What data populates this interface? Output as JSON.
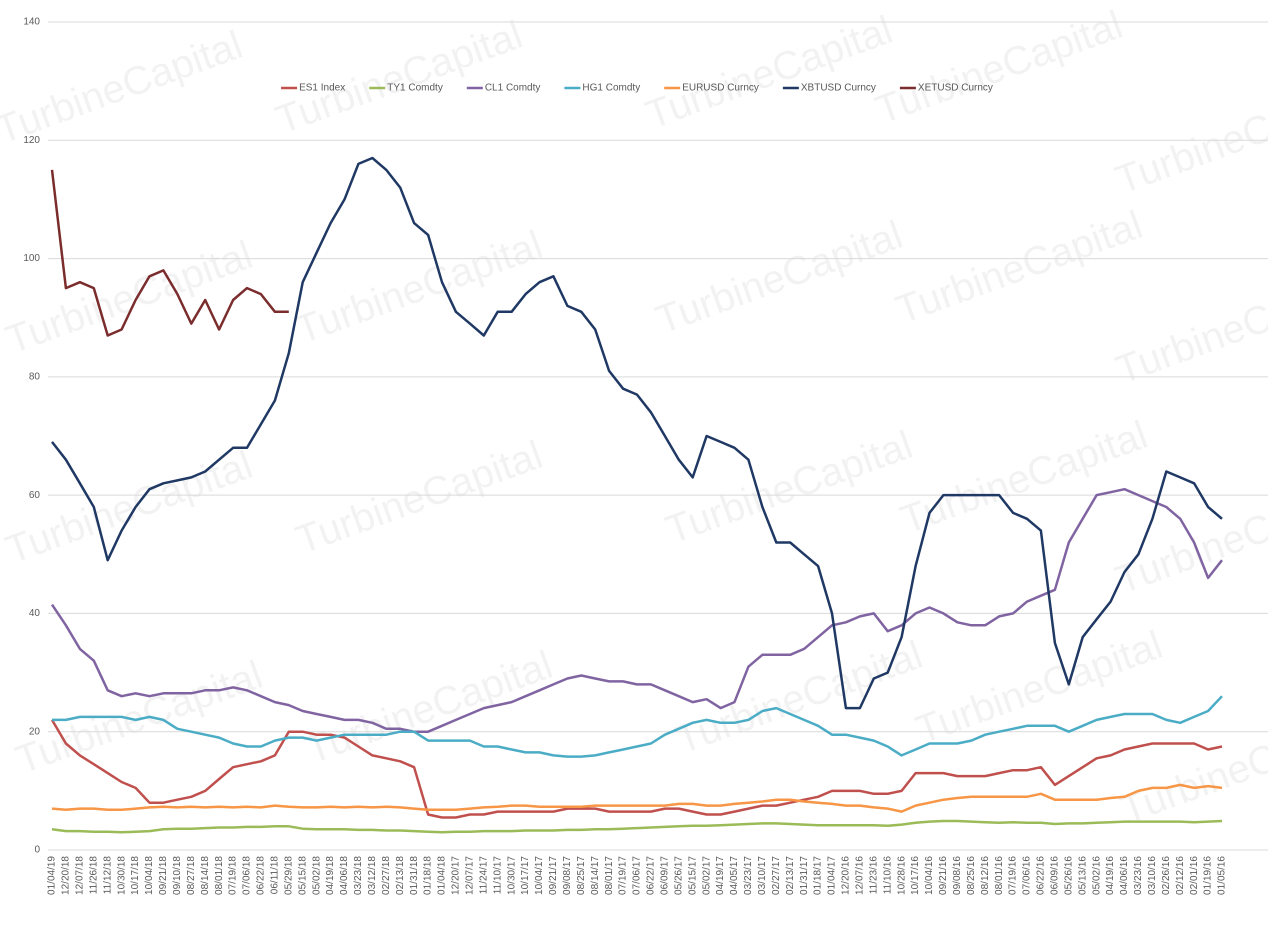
{
  "watermark": "TurbineCapital",
  "chart_data": {
    "type": "line",
    "categories": [
      "01/04/19",
      "12/20/18",
      "12/07/18",
      "11/26/18",
      "11/12/18",
      "10/30/18",
      "10/17/18",
      "10/04/18",
      "09/21/18",
      "09/10/18",
      "08/27/18",
      "08/14/18",
      "08/01/18",
      "07/19/18",
      "07/06/18",
      "06/22/18",
      "06/11/18",
      "05/29/18",
      "05/15/18",
      "05/02/18",
      "04/19/18",
      "04/06/18",
      "03/23/18",
      "03/12/18",
      "02/27/18",
      "02/13/18",
      "01/31/18",
      "01/18/18",
      "01/04/18",
      "12/20/17",
      "12/07/17",
      "11/24/17",
      "11/10/17",
      "10/30/17",
      "10/17/17",
      "10/04/17",
      "09/21/17",
      "09/08/17",
      "08/25/17",
      "08/14/17",
      "08/01/17",
      "07/19/17",
      "07/06/17",
      "06/22/17",
      "06/09/17",
      "05/26/17",
      "05/15/17",
      "05/02/17",
      "04/19/17",
      "04/05/17",
      "03/23/17",
      "03/10/17",
      "02/27/17",
      "02/13/17",
      "01/31/17",
      "01/18/17",
      "01/04/17",
      "12/20/16",
      "12/07/16",
      "11/23/16",
      "11/10/16",
      "10/28/16",
      "10/17/16",
      "10/04/16",
      "09/21/16",
      "09/08/16",
      "08/25/16",
      "08/12/16",
      "08/01/16",
      "07/19/16",
      "07/06/16",
      "06/22/16",
      "06/09/16",
      "05/26/16",
      "05/13/16",
      "05/02/16",
      "04/19/16",
      "04/06/16",
      "03/23/16",
      "03/10/16",
      "02/26/16",
      "02/12/16",
      "02/01/16",
      "01/19/16",
      "01/05/16"
    ],
    "ylim": [
      0,
      140
    ],
    "yticks": [
      0,
      20,
      40,
      60,
      80,
      100,
      120,
      140
    ],
    "grid": true,
    "legend": "top",
    "series": [
      {
        "name": "ES1 Index",
        "color": "#c0504d",
        "values": [
          22,
          18,
          16,
          14.5,
          13,
          11.5,
          10.5,
          8,
          8,
          8.5,
          9,
          10,
          12,
          14,
          14.5,
          15,
          16,
          20,
          20,
          19.5,
          19.5,
          19,
          17.5,
          16,
          15.5,
          15,
          14,
          6,
          5.5,
          5.5,
          6,
          6,
          6.5,
          6.5,
          6.5,
          6.5,
          6.5,
          7,
          7,
          7,
          6.5,
          6.5,
          6.5,
          6.5,
          7,
          7,
          6.5,
          6,
          6,
          6.5,
          7,
          7.5,
          7.5,
          8,
          8.5,
          9,
          10,
          10,
          10,
          9.5,
          9.5,
          10,
          13,
          13,
          13,
          12.5,
          12.5,
          12.5,
          13,
          13.5,
          13.5,
          14,
          11,
          12.5,
          14,
          15.5,
          16,
          17,
          17.5,
          18,
          18,
          18,
          18,
          17,
          17.5
        ]
      },
      {
        "name": "TY1 Comdty",
        "color": "#9bbb59",
        "values": [
          3.5,
          3.2,
          3.2,
          3.1,
          3.1,
          3,
          3.1,
          3.2,
          3.5,
          3.6,
          3.6,
          3.7,
          3.8,
          3.8,
          3.9,
          3.9,
          4,
          4,
          3.6,
          3.5,
          3.5,
          3.5,
          3.4,
          3.4,
          3.3,
          3.3,
          3.2,
          3.1,
          3,
          3.1,
          3.1,
          3.2,
          3.2,
          3.2,
          3.3,
          3.3,
          3.3,
          3.4,
          3.4,
          3.5,
          3.5,
          3.6,
          3.7,
          3.8,
          3.9,
          4,
          4.1,
          4.1,
          4.2,
          4.3,
          4.4,
          4.5,
          4.5,
          4.4,
          4.3,
          4.2,
          4.2,
          4.2,
          4.2,
          4.2,
          4.1,
          4.3,
          4.6,
          4.8,
          4.9,
          4.9,
          4.8,
          4.7,
          4.6,
          4.7,
          4.6,
          4.6,
          4.4,
          4.5,
          4.5,
          4.6,
          4.7,
          4.8,
          4.8,
          4.8,
          4.8,
          4.8,
          4.7,
          4.8,
          4.9
        ]
      },
      {
        "name": "CL1 Comdty",
        "color": "#8064a2",
        "values": [
          41.5,
          38,
          34,
          32,
          27,
          26,
          26.5,
          26,
          26.5,
          26.5,
          26.5,
          27,
          27,
          27.5,
          27,
          26,
          25,
          24.5,
          23.5,
          23,
          22.5,
          22,
          22,
          21.5,
          20.5,
          20.5,
          20,
          20,
          21,
          22,
          23,
          24,
          24.5,
          25,
          26,
          27,
          28,
          29,
          29.5,
          29,
          28.5,
          28.5,
          28,
          28,
          27,
          26,
          25,
          25.5,
          24,
          25,
          31,
          33,
          33,
          33,
          34,
          36,
          38,
          38.5,
          39.5,
          40,
          37,
          38,
          40,
          41,
          40,
          38.5,
          38,
          38,
          39.5,
          40,
          42,
          43,
          44,
          52,
          56,
          60,
          60.5,
          61,
          60,
          59,
          58,
          56,
          52,
          46,
          49
        ]
      },
      {
        "name": "HG1 Comdty",
        "color": "#4bacc6",
        "values": [
          22,
          22,
          22.5,
          22.5,
          22.5,
          22.5,
          22,
          22.5,
          22,
          20.5,
          20,
          19.5,
          19,
          18,
          17.5,
          17.5,
          18.5,
          19,
          19,
          18.5,
          19,
          19.5,
          19.5,
          19.5,
          19.5,
          20,
          20,
          18.5,
          18.5,
          18.5,
          18.5,
          17.5,
          17.5,
          17,
          16.5,
          16.5,
          16,
          15.8,
          15.8,
          16,
          16.5,
          17,
          17.5,
          18,
          19.5,
          20.5,
          21.5,
          22,
          21.5,
          21.5,
          22,
          23.5,
          24,
          23,
          22,
          21,
          19.5,
          19.5,
          19,
          18.5,
          17.5,
          16,
          17,
          18,
          18,
          18,
          18.5,
          19.5,
          20,
          20.5,
          21,
          21,
          21,
          20,
          21,
          22,
          22.5,
          23,
          23,
          23,
          22,
          21.5,
          22.5,
          23.5,
          26
        ]
      },
      {
        "name": "EURUSD Curncy",
        "color": "#f79646",
        "values": [
          7,
          6.8,
          7,
          7,
          6.8,
          6.8,
          7,
          7.2,
          7.3,
          7.2,
          7.3,
          7.2,
          7.3,
          7.2,
          7.3,
          7.2,
          7.5,
          7.3,
          7.2,
          7.2,
          7.3,
          7.2,
          7.3,
          7.2,
          7.3,
          7.2,
          7,
          6.8,
          6.8,
          6.8,
          7,
          7.2,
          7.3,
          7.5,
          7.5,
          7.3,
          7.3,
          7.3,
          7.3,
          7.5,
          7.5,
          7.5,
          7.5,
          7.5,
          7.5,
          7.8,
          7.8,
          7.5,
          7.5,
          7.8,
          8,
          8.2,
          8.5,
          8.5,
          8.2,
          8,
          7.8,
          7.5,
          7.5,
          7.2,
          7,
          6.5,
          7.5,
          8,
          8.5,
          8.8,
          9,
          9,
          9,
          9,
          9,
          9.5,
          8.5,
          8.5,
          8.5,
          8.5,
          8.8,
          9,
          10,
          10.5,
          10.5,
          11,
          10.5,
          10.8,
          10.5
        ]
      },
      {
        "name": "XBTUSD Curncy",
        "color": "#1f3864",
        "values": [
          69,
          66,
          62,
          58,
          49,
          54,
          58,
          61,
          62,
          62.5,
          63,
          64,
          66,
          68,
          68,
          72,
          76,
          84,
          96,
          101,
          106,
          110,
          116,
          117,
          115,
          112,
          106,
          104,
          96,
          91,
          89,
          87,
          91,
          91,
          94,
          96,
          97,
          92,
          91,
          88,
          81,
          78,
          77,
          74,
          70,
          66,
          63,
          70,
          69,
          68,
          66,
          58,
          52,
          52,
          50,
          48,
          40,
          24,
          24,
          29,
          30,
          36,
          48,
          57,
          60,
          60,
          60,
          60,
          60,
          57,
          56,
          54,
          35,
          28,
          36,
          39,
          42,
          47,
          50,
          56,
          64,
          63,
          62,
          58,
          56
        ]
      },
      {
        "name": "XETUSD Curncy",
        "color": "#7b2c2c",
        "values": [
          115,
          95,
          96,
          95,
          87,
          88,
          93,
          97,
          98,
          94,
          89,
          93,
          88,
          93,
          95,
          94,
          91,
          91,
          null,
          null,
          null,
          null,
          null,
          null,
          null,
          null,
          null,
          null,
          null,
          null,
          null,
          null,
          null,
          null,
          null,
          null,
          null,
          null,
          null,
          null,
          null,
          null,
          null,
          null,
          null,
          null,
          null,
          null,
          null,
          null,
          null,
          null,
          null,
          null,
          null,
          null,
          null,
          null,
          null,
          null,
          null,
          null,
          null,
          null,
          null,
          null,
          null,
          null,
          null,
          null,
          null,
          null,
          null,
          null,
          null,
          null,
          null,
          null,
          null,
          null,
          null,
          null,
          null,
          null,
          null
        ]
      }
    ]
  }
}
